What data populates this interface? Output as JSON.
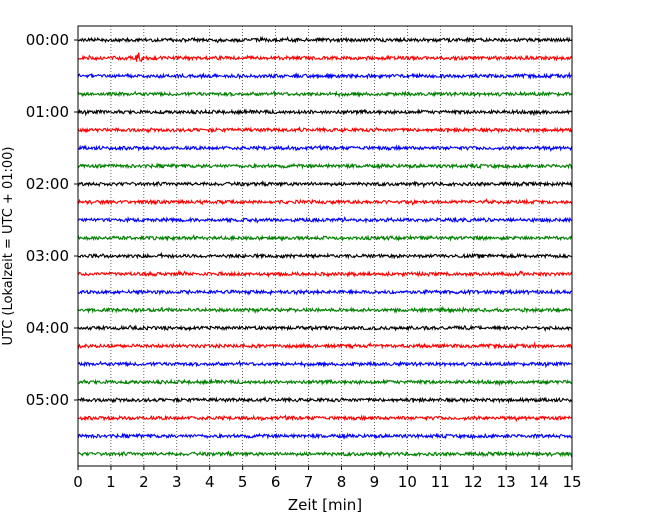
{
  "chart_data": {
    "type": "line",
    "xlabel": "Zeit  [min]",
    "ylabel": "UTC (Lokalzeit = UTC + 01:00)",
    "xlim": [
      0,
      15
    ],
    "x_ticks": [
      0,
      1,
      2,
      3,
      4,
      5,
      6,
      7,
      8,
      9,
      10,
      11,
      12,
      13,
      14,
      15
    ],
    "y_tick_labels": [
      "00:00",
      "01:00",
      "02:00",
      "03:00",
      "04:00",
      "05:00"
    ],
    "grid": "vertical dotted at each minute",
    "trace_count": 24,
    "trace_interval_minutes": 15,
    "colors": [
      "#000000",
      "#ff0000",
      "#0000ff",
      "#008000"
    ],
    "events": [
      {
        "trace": 1,
        "minute": 1.85,
        "note": "small burst"
      }
    ]
  }
}
